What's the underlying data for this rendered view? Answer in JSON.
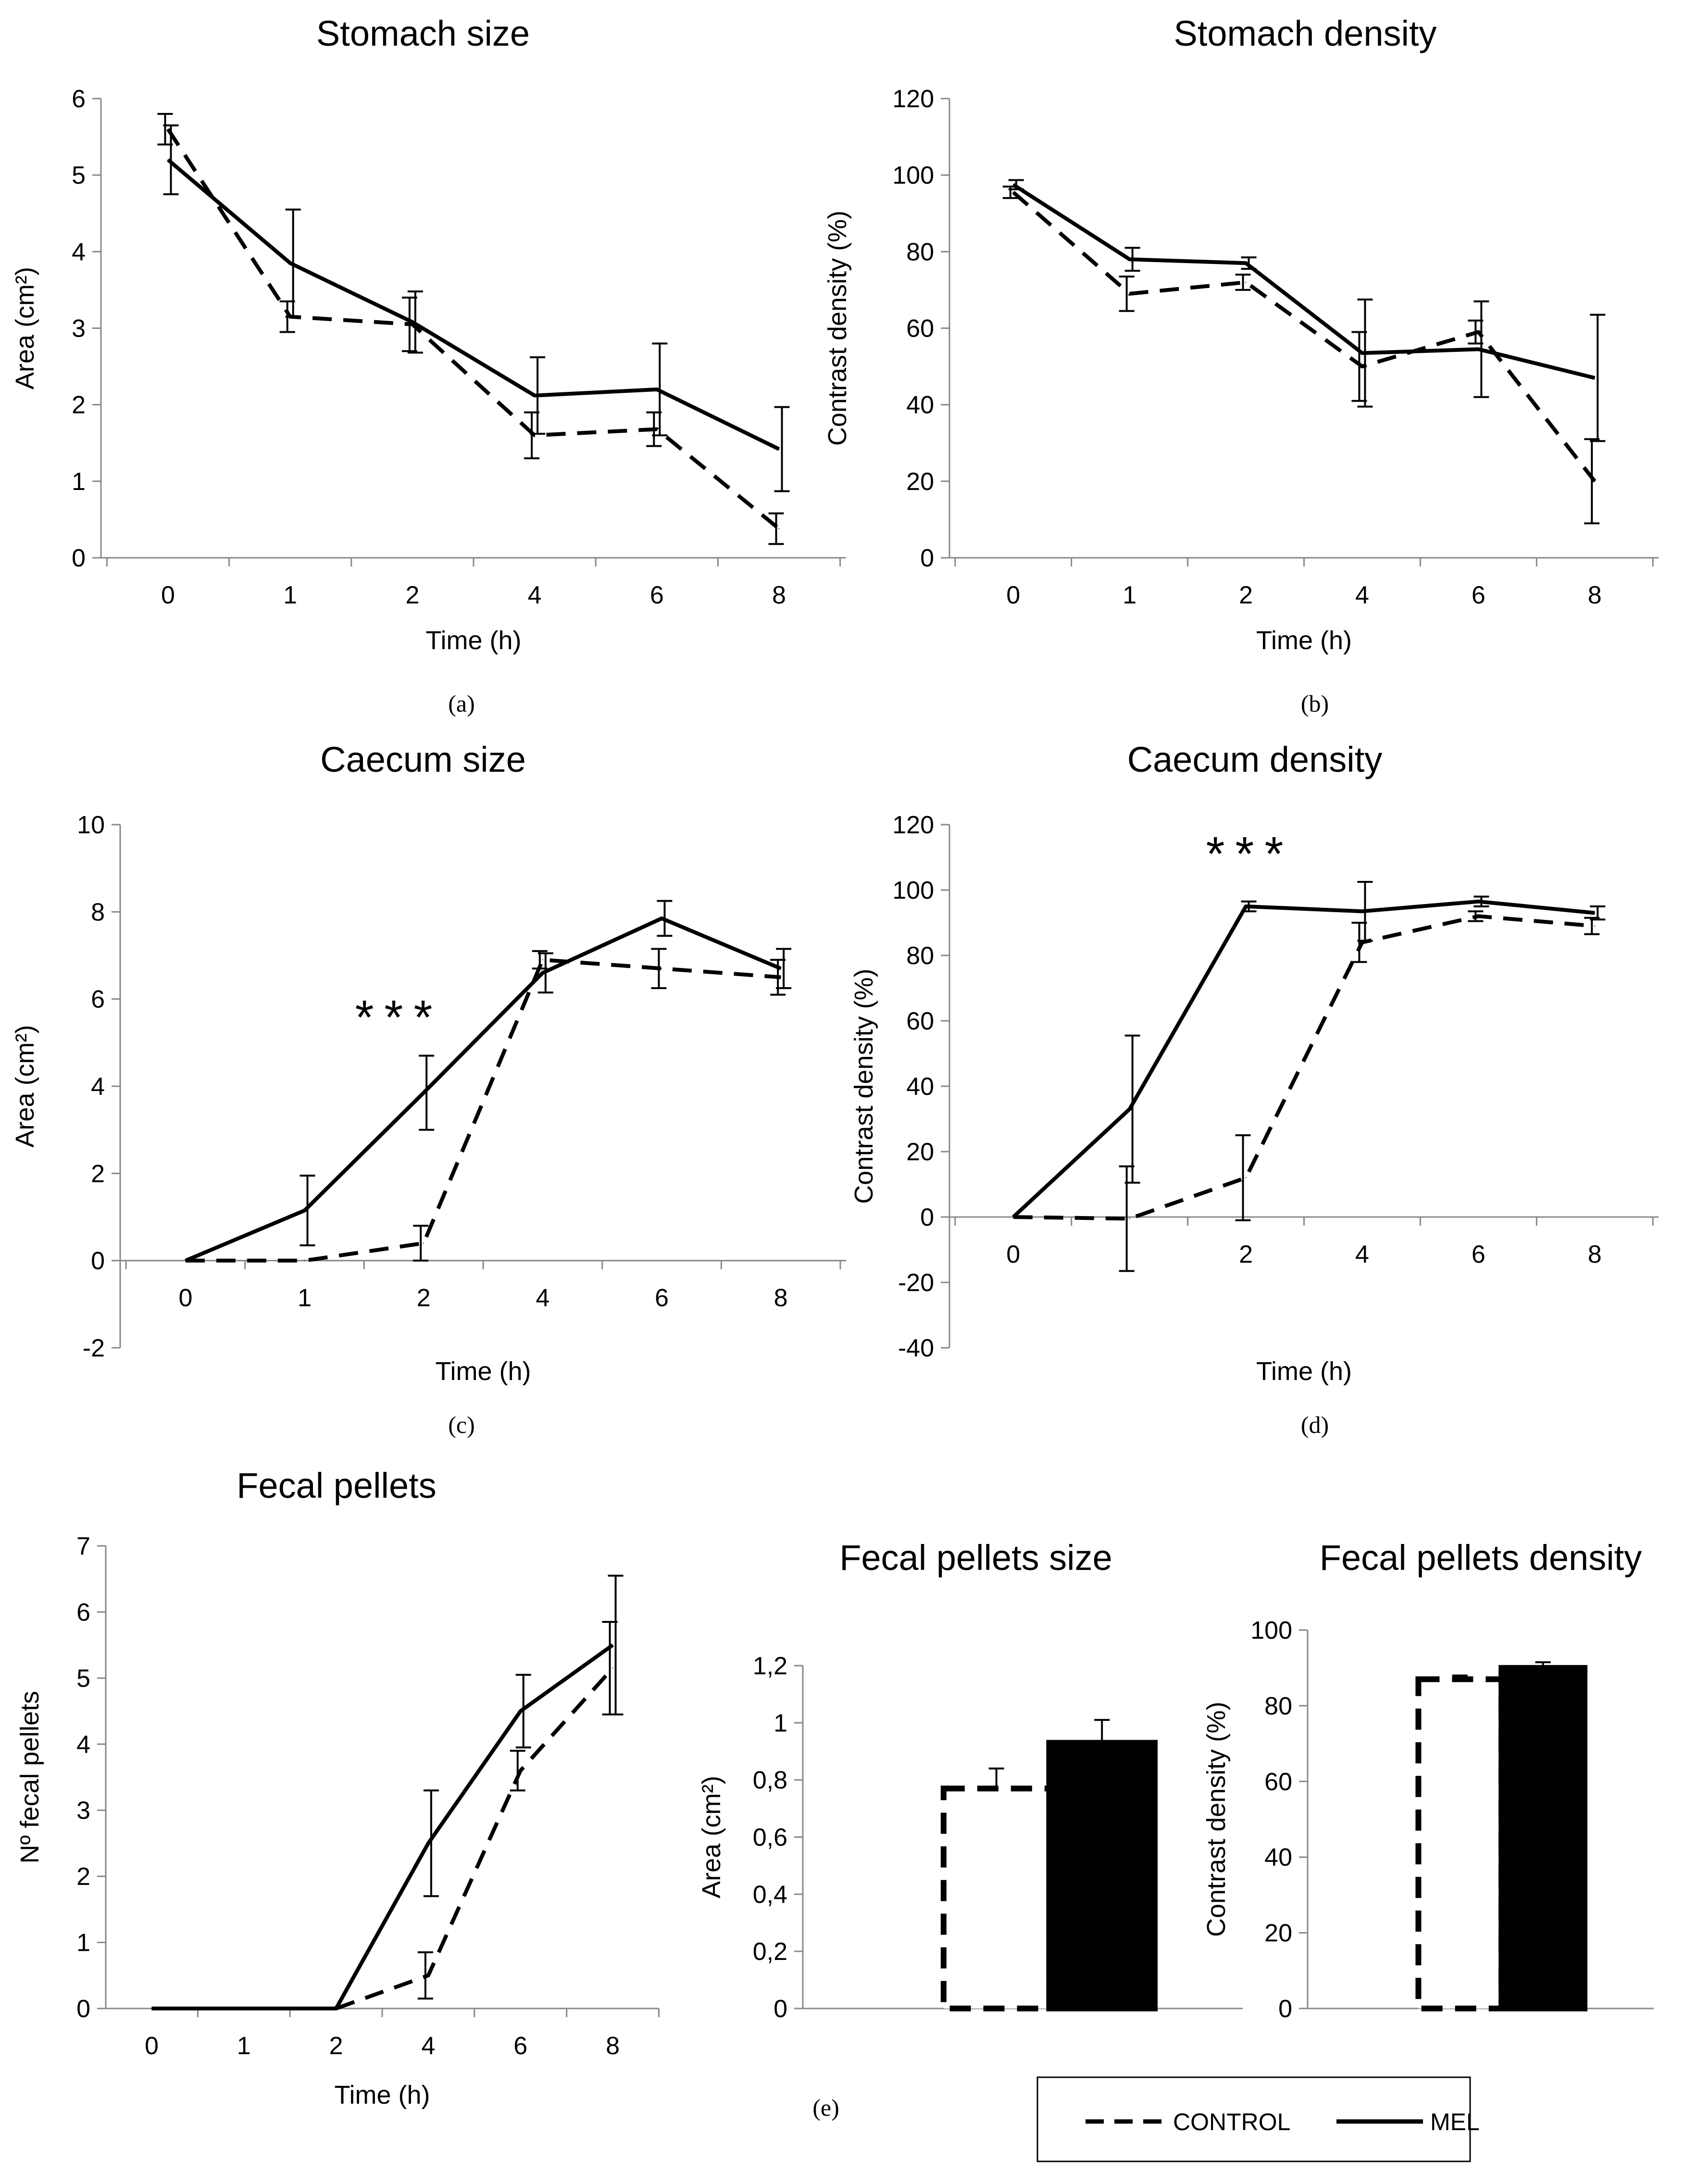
{
  "series_names": [
    "CONTROL",
    "MEL"
  ],
  "legend": {
    "items": [
      "CONTROL",
      "MEL"
    ]
  },
  "panel_labels": [
    "(a)",
    "(b)",
    "(c)",
    "(d)",
    "(e)"
  ],
  "chart_data": [
    {
      "id": "a",
      "type": "line",
      "title": "Stomach size",
      "xlabel": "Time (h)",
      "ylabel": "Area (cm²)",
      "categories": [
        "0",
        "1",
        "2",
        "4",
        "6",
        "8"
      ],
      "ylim": [
        0,
        6
      ],
      "ystep": 1,
      "grid": false,
      "series": [
        {
          "name": "CONTROL",
          "style": "dashed",
          "values": [
            5.6,
            3.15,
            3.05,
            1.6,
            1.68,
            0.38
          ],
          "errors": [
            0.2,
            0.2,
            0.35,
            0.3,
            0.22,
            0.2
          ]
        },
        {
          "name": "MEL",
          "style": "solid",
          "values": [
            5.2,
            3.85,
            3.08,
            2.12,
            2.2,
            1.42
          ],
          "errors": [
            0.45,
            0.7,
            0.4,
            0.5,
            0.6,
            0.55
          ]
        }
      ]
    },
    {
      "id": "b",
      "type": "line",
      "title": "Stomach density",
      "xlabel": "Time (h)",
      "ylabel": "Contrast density (%)",
      "categories": [
        "0",
        "1",
        "2",
        "4",
        "6",
        "8"
      ],
      "ylim": [
        0,
        120
      ],
      "ystep": 20,
      "grid": false,
      "series": [
        {
          "name": "CONTROL",
          "style": "dashed",
          "values": [
            95.5,
            69,
            72,
            50,
            59,
            20
          ],
          "errors": [
            1.5,
            4.5,
            2,
            9,
            3,
            11
          ]
        },
        {
          "name": "MEL",
          "style": "solid",
          "values": [
            97.5,
            78,
            77,
            53.5,
            54.5,
            47
          ],
          "errors": [
            1.2,
            3,
            1.5,
            14,
            12.5,
            16.5
          ]
        }
      ]
    },
    {
      "id": "c",
      "type": "line",
      "title": "Caecum size",
      "xlabel": "Time (h)",
      "ylabel": "Area (cm²)",
      "categories": [
        "0",
        "1",
        "2",
        "4",
        "6",
        "8"
      ],
      "ylim": [
        -2,
        10
      ],
      "ystep": 2,
      "grid": false,
      "annotation": "***",
      "series": [
        {
          "name": "CONTROL",
          "style": "dashed",
          "values": [
            0,
            0,
            0.4,
            6.9,
            6.7,
            6.5
          ],
          "errors": [
            0,
            0,
            0.4,
            0.2,
            0.45,
            0.4
          ]
        },
        {
          "name": "MEL",
          "style": "solid",
          "values": [
            0,
            1.15,
            3.85,
            6.6,
            7.85,
            6.7
          ],
          "errors": [
            0,
            0.8,
            0.85,
            0.45,
            0.4,
            0.45
          ]
        }
      ]
    },
    {
      "id": "d",
      "type": "line",
      "title": "Caecum density",
      "xlabel": "Time (h)",
      "ylabel": "Contrast density  (%)",
      "categories": [
        "0",
        "",
        "2",
        "4",
        "6",
        "8"
      ],
      "ylim": [
        -40,
        120
      ],
      "ystep": 20,
      "grid": false,
      "annotation": "***",
      "series": [
        {
          "name": "CONTROL",
          "style": "dashed",
          "values": [
            0,
            -0.5,
            12,
            84,
            92,
            89
          ],
          "errors": [
            0,
            16,
            13,
            6,
            1.5,
            2.5
          ]
        },
        {
          "name": "MEL",
          "style": "solid",
          "values": [
            0,
            33,
            95,
            93.5,
            96.5,
            93
          ],
          "errors": [
            0,
            22.5,
            1.5,
            9,
            1.5,
            2
          ]
        }
      ]
    },
    {
      "id": "e1",
      "type": "line",
      "title": "Fecal pellets",
      "xlabel": "Time (h)",
      "ylabel": "Nº fecal pellets",
      "categories": [
        "0",
        "1",
        "2",
        "4",
        "6",
        "8"
      ],
      "ylim": [
        0,
        7
      ],
      "ystep": 1,
      "grid": false,
      "series": [
        {
          "name": "CONTROL",
          "style": "dashed",
          "values": [
            0,
            0,
            0,
            0.5,
            3.6,
            5.15
          ],
          "errors": [
            0,
            0,
            0,
            0.35,
            0.3,
            0.7
          ]
        },
        {
          "name": "MEL",
          "style": "solid",
          "values": [
            0,
            0,
            0,
            2.5,
            4.5,
            5.5
          ],
          "errors": [
            0,
            0,
            0,
            0.8,
            0.55,
            1.05
          ]
        }
      ]
    },
    {
      "id": "e2",
      "type": "bar",
      "title": "Fecal pellets size",
      "xlabel": "",
      "ylabel": "Area (cm²)",
      "categories": [
        "CONTROL",
        "MEL"
      ],
      "ylim": [
        0,
        1.2
      ],
      "ystep": 0.2,
      "decimal_comma": true,
      "grid": false,
      "values": [
        0.77,
        0.93
      ],
      "errors": [
        0.07,
        0.08
      ]
    },
    {
      "id": "e3",
      "type": "bar",
      "title": "Fecal pellets density",
      "xlabel": "",
      "ylabel": "Contrast density (%)",
      "categories": [
        "CONTROL",
        "MEL"
      ],
      "ylim": [
        0,
        100
      ],
      "ystep": 20,
      "grid": false,
      "values": [
        87,
        90
      ],
      "errors": [
        1,
        1.5
      ]
    }
  ]
}
